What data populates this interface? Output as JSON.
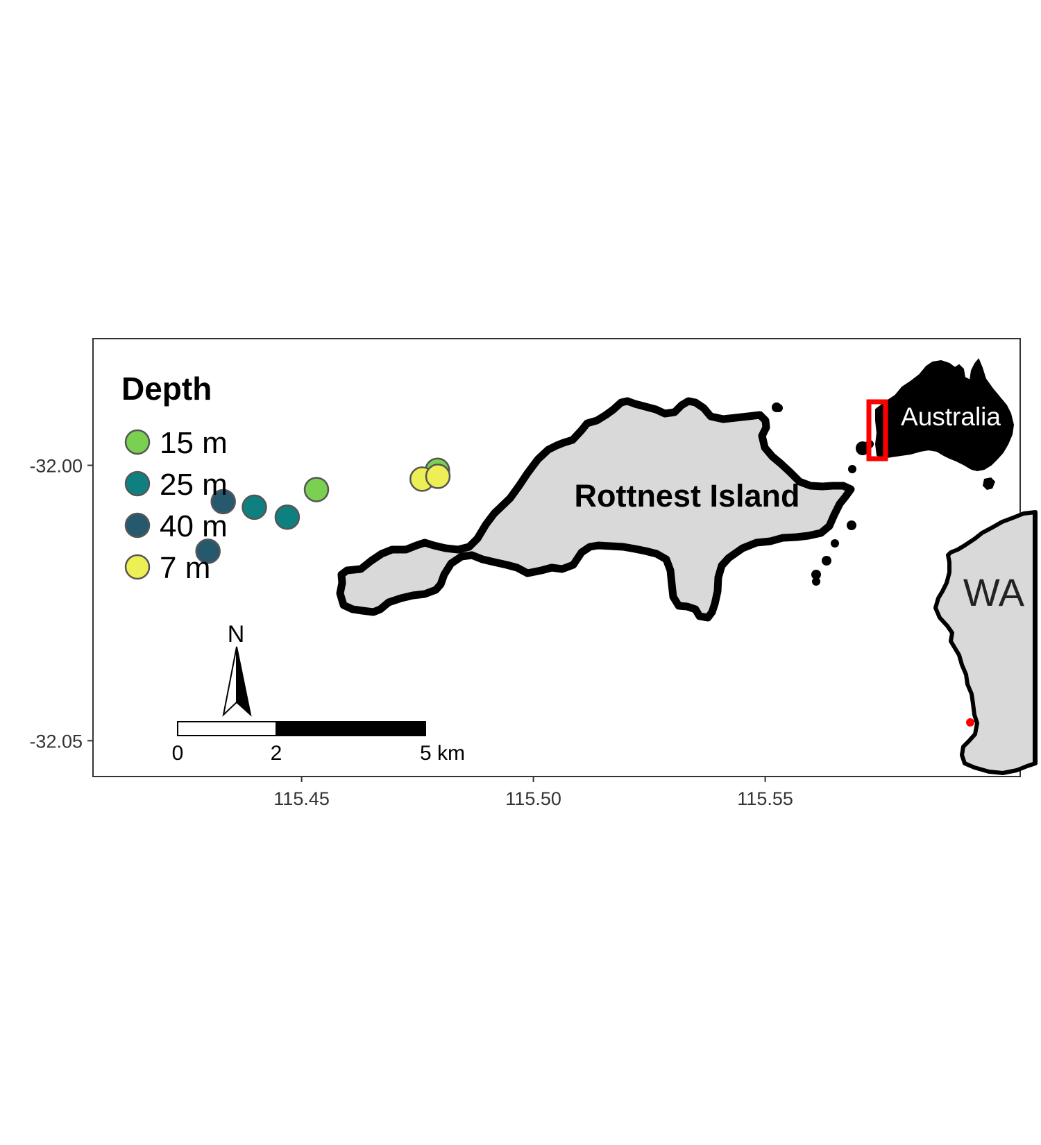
{
  "chart_data": {
    "type": "scatter",
    "title": "",
    "xlabel": "",
    "ylabel": "",
    "xlim": [
      115.405,
      115.605
    ],
    "ylim": [
      -32.0565,
      -31.977
    ],
    "x_ticks": [
      "115.45",
      "115.50",
      "115.55"
    ],
    "y_ticks": [
      "-32.00",
      "-32.05"
    ],
    "legend_title": "Depth",
    "legend_position": "top-left",
    "grid": false,
    "series": [
      {
        "name": "15 m",
        "color": "#7AD151",
        "points": [
          {
            "x": 115.4532,
            "y": -32.0044
          },
          {
            "x": 115.4793,
            "y": -32.0009
          }
        ]
      },
      {
        "name": "25 m",
        "color": "#0E8080",
        "points": [
          {
            "x": 115.4398,
            "y": -32.0076
          },
          {
            "x": 115.4469,
            "y": -32.0094
          }
        ]
      },
      {
        "name": "40 m",
        "color": "#27596E",
        "points": [
          {
            "x": 115.4331,
            "y": -32.0066
          },
          {
            "x": 115.4298,
            "y": -32.0156
          }
        ]
      },
      {
        "name": "7 m",
        "color": "#EEEE55",
        "points": [
          {
            "x": 115.476,
            "y": -32.0025
          },
          {
            "x": 115.4794,
            "y": -32.002
          }
        ]
      }
    ]
  },
  "annotations": {
    "island_label": "Rottnest Island",
    "inset_country_label": "Australia",
    "inset_state_label": "WA",
    "north_arrow_label": "N",
    "scale_bar_labels": [
      "0",
      "2",
      "5 km"
    ]
  },
  "colors": {
    "land_fill": "#D9D9D9",
    "coastline": "#000000",
    "inset_highlight": "#FF0000",
    "point_outline": "#555555"
  }
}
